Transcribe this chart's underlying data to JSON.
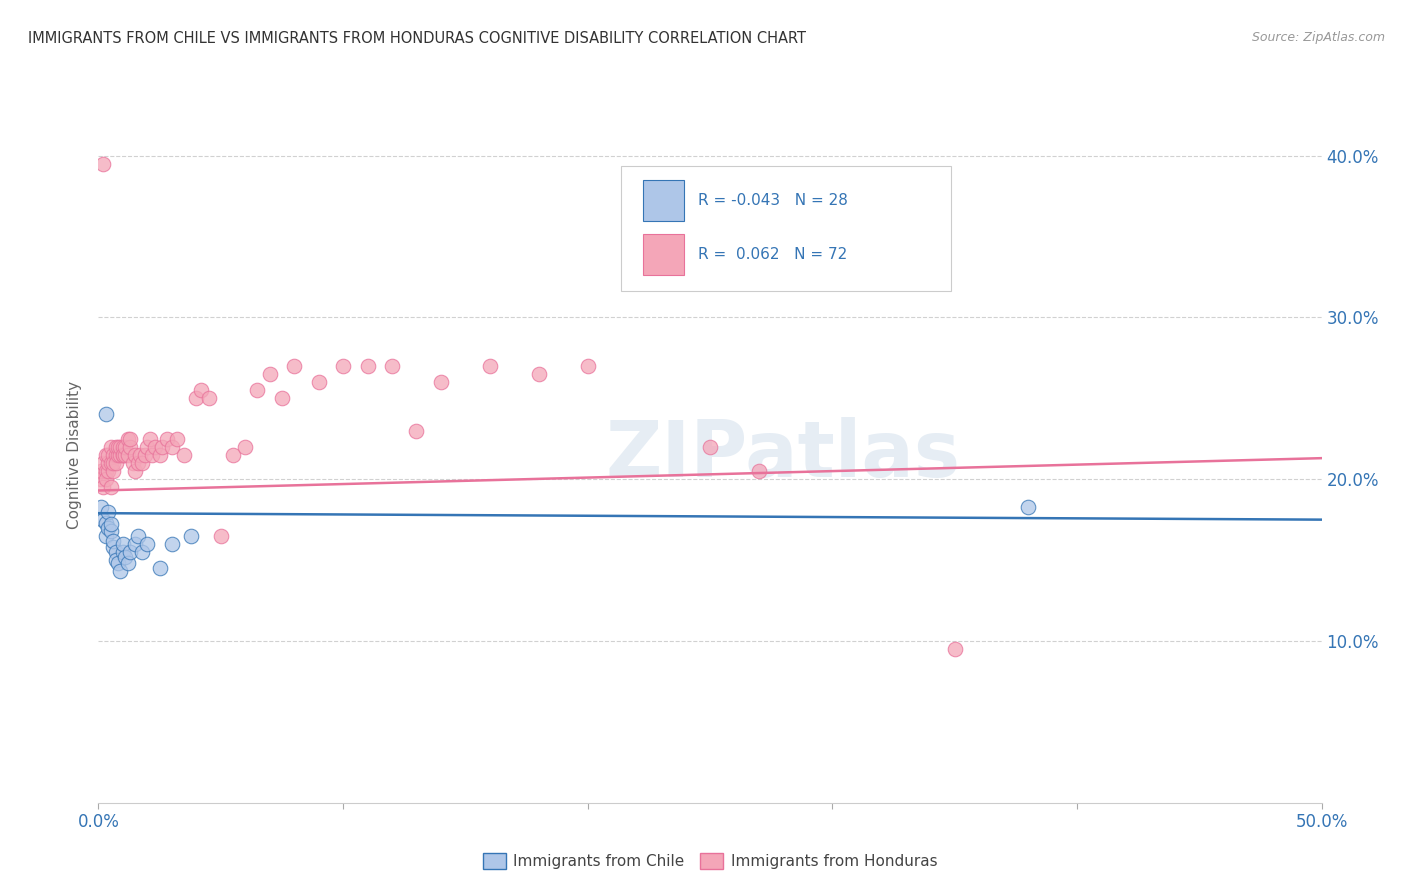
{
  "title": "IMMIGRANTS FROM CHILE VS IMMIGRANTS FROM HONDURAS COGNITIVE DISABILITY CORRELATION CHART",
  "source": "Source: ZipAtlas.com",
  "ylabel": "Cognitive Disability",
  "xlim": [
    0.0,
    0.5
  ],
  "ylim": [
    0.0,
    0.43
  ],
  "xtick_positions": [
    0.0,
    0.1,
    0.2,
    0.3,
    0.4,
    0.5
  ],
  "xtick_labels": [
    "0.0%",
    "",
    "",
    "",
    "",
    "50.0%"
  ],
  "ytick_positions": [
    0.1,
    0.2,
    0.3,
    0.4
  ],
  "ytick_labels_right": [
    "10.0%",
    "20.0%",
    "30.0%",
    "40.0%"
  ],
  "chile_color": "#aec6e8",
  "honduras_color": "#f4a6b8",
  "chile_line_color": "#3575b5",
  "honduras_line_color": "#e8729a",
  "R_chile": -0.043,
  "N_chile": 28,
  "R_honduras": 0.062,
  "N_honduras": 72,
  "legend_text_color": "#3575b5",
  "watermark": "ZIPatlas",
  "chile_x": [
    0.001,
    0.002,
    0.003,
    0.003,
    0.004,
    0.004,
    0.005,
    0.005,
    0.006,
    0.006,
    0.007,
    0.007,
    0.008,
    0.009,
    0.01,
    0.01,
    0.011,
    0.012,
    0.013,
    0.015,
    0.016,
    0.018,
    0.02,
    0.025,
    0.03,
    0.038,
    0.38,
    0.003
  ],
  "chile_y": [
    0.183,
    0.175,
    0.173,
    0.165,
    0.17,
    0.18,
    0.168,
    0.172,
    0.158,
    0.162,
    0.155,
    0.15,
    0.148,
    0.143,
    0.155,
    0.16,
    0.152,
    0.148,
    0.155,
    0.16,
    0.165,
    0.155,
    0.16,
    0.145,
    0.16,
    0.165,
    0.183,
    0.24
  ],
  "honduras_x": [
    0.001,
    0.001,
    0.002,
    0.002,
    0.003,
    0.003,
    0.003,
    0.004,
    0.004,
    0.004,
    0.005,
    0.005,
    0.005,
    0.006,
    0.006,
    0.006,
    0.007,
    0.007,
    0.007,
    0.008,
    0.008,
    0.009,
    0.009,
    0.01,
    0.01,
    0.01,
    0.011,
    0.011,
    0.012,
    0.012,
    0.013,
    0.013,
    0.014,
    0.015,
    0.015,
    0.016,
    0.017,
    0.018,
    0.019,
    0.02,
    0.021,
    0.022,
    0.023,
    0.025,
    0.026,
    0.028,
    0.03,
    0.032,
    0.035,
    0.04,
    0.042,
    0.045,
    0.05,
    0.055,
    0.06,
    0.065,
    0.07,
    0.075,
    0.08,
    0.09,
    0.1,
    0.11,
    0.12,
    0.13,
    0.14,
    0.16,
    0.18,
    0.2,
    0.25,
    0.27,
    0.35,
    0.002
  ],
  "honduras_y": [
    0.2,
    0.205,
    0.195,
    0.21,
    0.205,
    0.215,
    0.2,
    0.205,
    0.21,
    0.215,
    0.195,
    0.21,
    0.22,
    0.205,
    0.215,
    0.21,
    0.215,
    0.22,
    0.21,
    0.215,
    0.22,
    0.215,
    0.22,
    0.215,
    0.22,
    0.215,
    0.215,
    0.22,
    0.225,
    0.215,
    0.22,
    0.225,
    0.21,
    0.215,
    0.205,
    0.21,
    0.215,
    0.21,
    0.215,
    0.22,
    0.225,
    0.215,
    0.22,
    0.215,
    0.22,
    0.225,
    0.22,
    0.225,
    0.215,
    0.25,
    0.255,
    0.25,
    0.165,
    0.215,
    0.22,
    0.255,
    0.265,
    0.25,
    0.27,
    0.26,
    0.27,
    0.27,
    0.27,
    0.23,
    0.26,
    0.27,
    0.265,
    0.27,
    0.22,
    0.205,
    0.095,
    0.395
  ]
}
